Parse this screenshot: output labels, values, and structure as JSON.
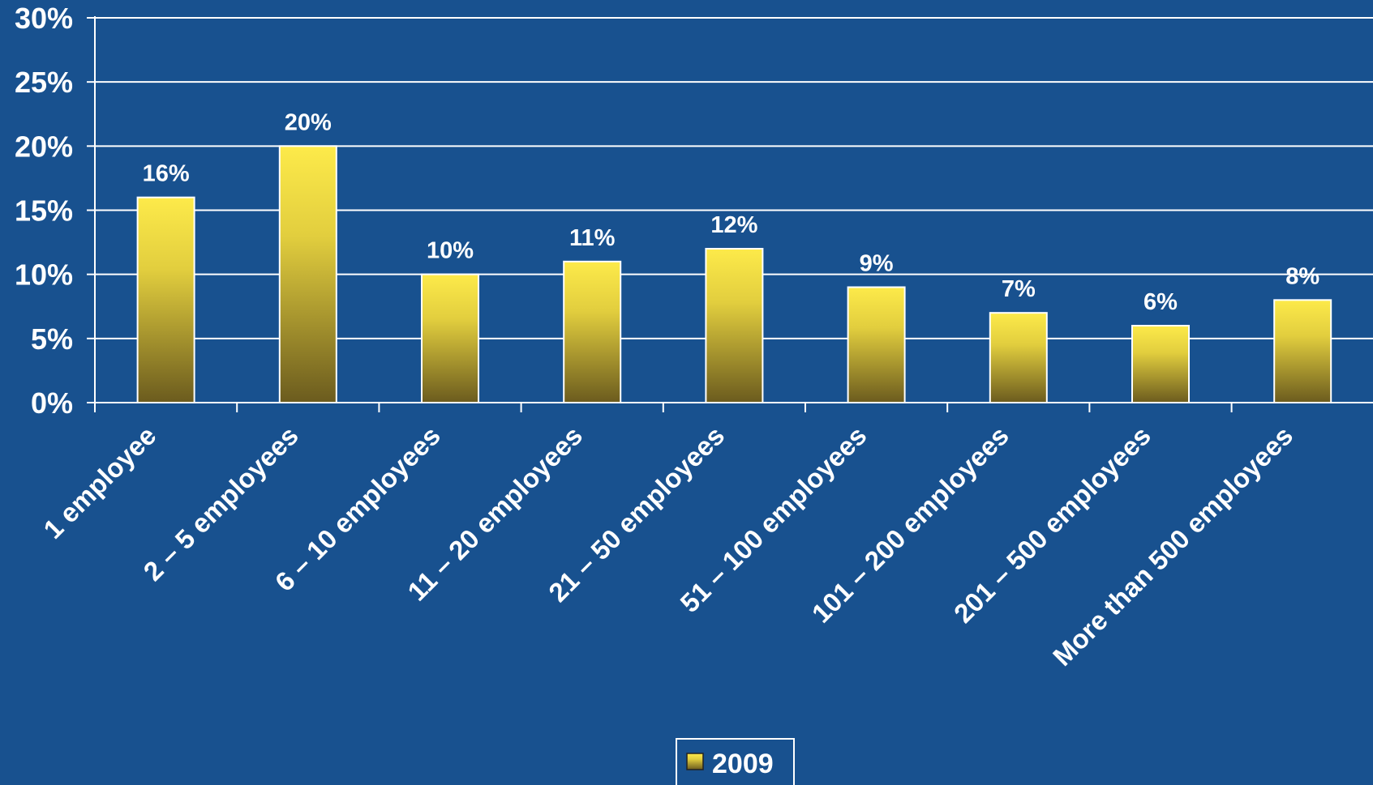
{
  "chart_data": {
    "type": "bar",
    "categories": [
      "1 employee",
      "2 – 5 employees",
      "6 – 10 employees",
      "11 – 20 employees",
      "21 – 50 employees",
      "51 – 100 employees",
      "101 – 200 employees",
      "201 – 500 employees",
      "More than 500 employees"
    ],
    "series": [
      {
        "name": "2009",
        "values": [
          16,
          20,
          10,
          11,
          12,
          9,
          7,
          6,
          8
        ]
      }
    ],
    "data_labels": [
      "16%",
      "20%",
      "10%",
      "11%",
      "12%",
      "9%",
      "7%",
      "6%",
      "8%"
    ],
    "y_ticks": [
      "0%",
      "5%",
      "10%",
      "15%",
      "20%",
      "25%",
      "30%"
    ],
    "ylim": [
      0,
      30
    ],
    "grid": true,
    "legend": {
      "position": "bottom",
      "entries": [
        "2009"
      ]
    },
    "title": "",
    "xlabel": "",
    "ylabel": "",
    "colors": {
      "background": "#18518f",
      "bar_top": "#fdea4a",
      "bar_bottom": "#6b5b1e",
      "axis": "#ffffff",
      "grid": "#ffffff"
    }
  }
}
